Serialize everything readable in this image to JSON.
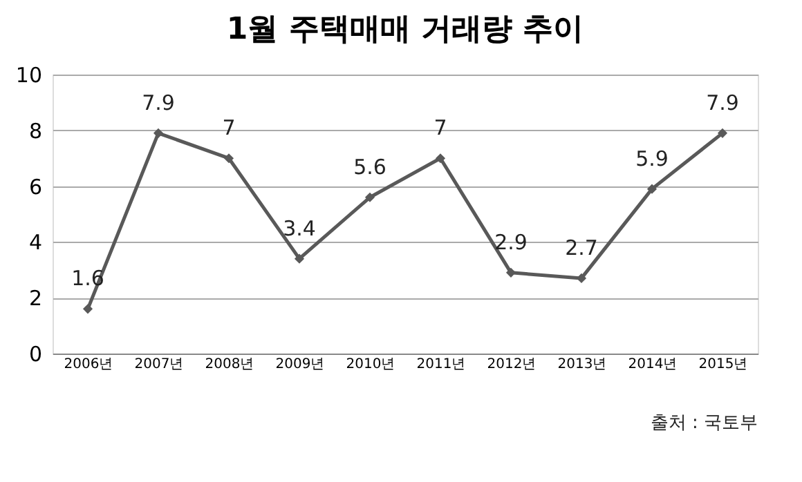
{
  "chart_data": {
    "type": "line",
    "title": "1월 주택매매 거래량 추이",
    "categories": [
      "2006년",
      "2007년",
      "2008년",
      "2009년",
      "2010년",
      "2011년",
      "2012년",
      "2013년",
      "2014년",
      "2015년"
    ],
    "series": [
      {
        "color": "#595959",
        "values": [
          1.6,
          7.9,
          7,
          3.4,
          5.6,
          7,
          2.9,
          2.7,
          5.9,
          7.9
        ]
      }
    ],
    "ylim": [
      0,
      10
    ],
    "yticks": [
      0,
      2,
      4,
      6,
      8,
      10
    ],
    "grid": "y",
    "marker": "diamond",
    "line_style": "solid",
    "data_labels": true,
    "annotations": [
      "출처 : 국토부"
    ]
  }
}
